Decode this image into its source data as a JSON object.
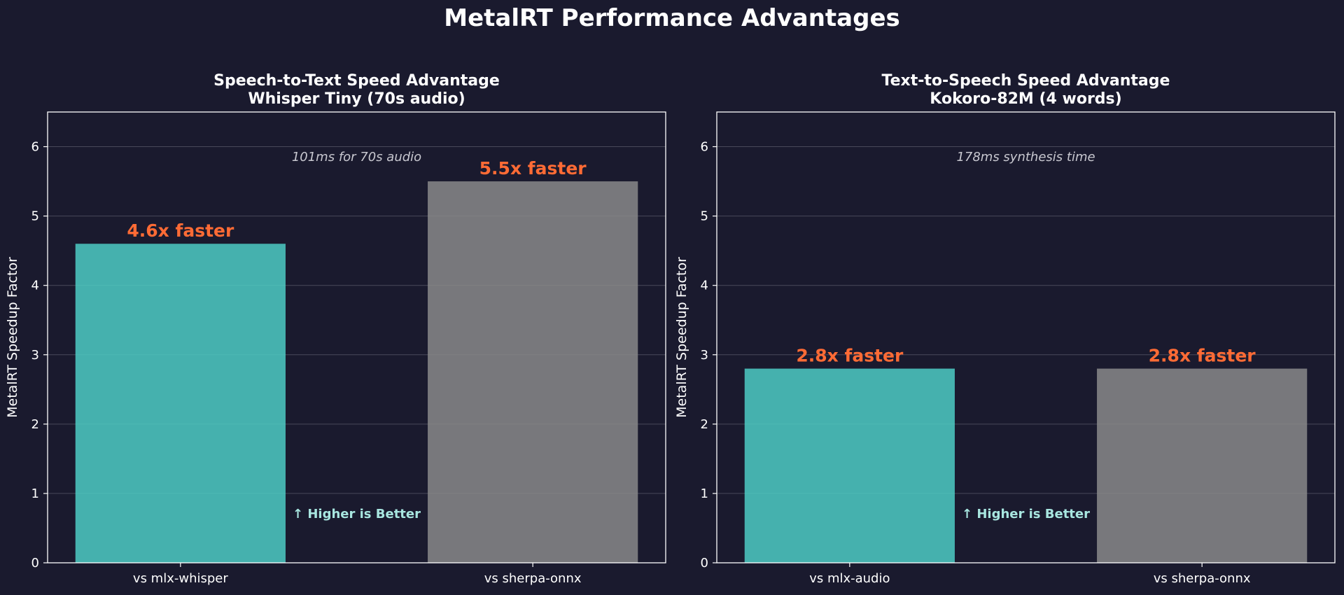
{
  "title": "MetalRT Performance Advantages",
  "colors": {
    "background": "#1a1a2e",
    "metalrt_bar": "#4ecdc4",
    "competitor_bar": "#8a8a8a",
    "value_label": "#ff6b35",
    "higher_better": "#a8e6e0",
    "annotation": "#c8c8d0",
    "axis": "#ffffff",
    "grid": "#555566"
  },
  "chart_data": [
    {
      "type": "bar",
      "title": "Speech-to-Text Speed Advantage",
      "subtitle": "Whisper Tiny (70s audio)",
      "xlabel": "",
      "ylabel": "MetalRT Speedup Factor",
      "categories": [
        "vs mlx-whisper",
        "vs sherpa-onnx"
      ],
      "values": [
        4.6,
        5.5
      ],
      "value_labels": [
        "4.6x faster",
        "5.5x faster"
      ],
      "ylim": [
        0,
        6.5
      ],
      "yticks": [
        0,
        1,
        2,
        3,
        4,
        5,
        6
      ],
      "grid": true,
      "annotation": "101ms for 70s audio",
      "note": "↑ Higher is Better"
    },
    {
      "type": "bar",
      "title": "Text-to-Speech Speed Advantage",
      "subtitle": "Kokoro-82M (4 words)",
      "xlabel": "",
      "ylabel": "MetalRT Speedup Factor",
      "categories": [
        "vs mlx-audio",
        "vs sherpa-onnx"
      ],
      "values": [
        2.8,
        2.8
      ],
      "value_labels": [
        "2.8x faster",
        "2.8x faster"
      ],
      "ylim": [
        0,
        6.5
      ],
      "yticks": [
        0,
        1,
        2,
        3,
        4,
        5,
        6
      ],
      "grid": true,
      "annotation": "178ms synthesis time",
      "note": "↑ Higher is Better"
    }
  ]
}
